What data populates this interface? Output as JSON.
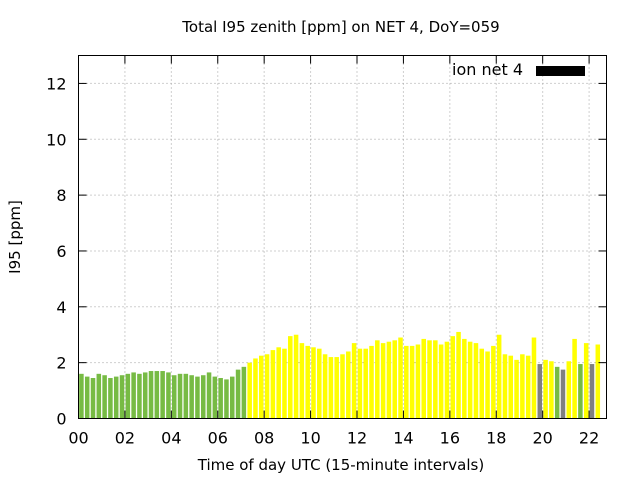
{
  "chart_data": {
    "type": "bar",
    "title": "Total I95 zenith [ppm] on NET 4, DoY=059",
    "xlabel": "Time of day UTC (15-minute intervals)",
    "ylabel": "I95 [ppm]",
    "xlim": [
      0,
      22.75
    ],
    "ylim": [
      0,
      13
    ],
    "x_ticks": [
      "00",
      "02",
      "04",
      "06",
      "08",
      "10",
      "12",
      "14",
      "16",
      "18",
      "20",
      "22"
    ],
    "y_ticks": [
      "0",
      "2",
      "4",
      "6",
      "8",
      "10",
      "12"
    ],
    "grid": true,
    "legend": {
      "placement": "top-right",
      "entries": [
        {
          "label": "ion net 4",
          "color": "#000000"
        }
      ]
    },
    "interval_hours": 0.25,
    "colors": {
      "green": "#77bb44",
      "yellow": "#ffff00",
      "gray": "#808080"
    },
    "values": [
      1.6,
      1.5,
      1.45,
      1.6,
      1.55,
      1.45,
      1.5,
      1.55,
      1.6,
      1.65,
      1.6,
      1.65,
      1.7,
      1.7,
      1.7,
      1.65,
      1.55,
      1.6,
      1.6,
      1.55,
      1.5,
      1.55,
      1.65,
      1.5,
      1.45,
      1.4,
      1.5,
      1.75,
      1.85,
      2.0,
      2.15,
      2.25,
      2.3,
      2.45,
      2.55,
      2.5,
      2.95,
      3.0,
      2.7,
      2.6,
      2.55,
      2.5,
      2.3,
      2.2,
      2.2,
      2.3,
      2.4,
      2.7,
      2.5,
      2.5,
      2.6,
      2.8,
      2.7,
      2.75,
      2.8,
      2.9,
      2.6,
      2.6,
      2.65,
      2.85,
      2.8,
      2.8,
      2.65,
      2.75,
      2.95,
      3.1,
      2.85,
      2.75,
      2.7,
      2.5,
      2.4,
      2.6,
      3.0,
      2.3,
      2.25,
      2.1,
      2.3,
      2.25,
      2.9,
      1.95,
      2.1,
      2.05,
      1.85,
      1.75,
      2.05,
      2.85,
      1.95,
      2.7,
      1.95,
      2.65
    ],
    "bar_colors": [
      "green",
      "green",
      "green",
      "green",
      "green",
      "green",
      "green",
      "green",
      "green",
      "green",
      "green",
      "green",
      "green",
      "green",
      "green",
      "green",
      "green",
      "green",
      "green",
      "green",
      "green",
      "green",
      "green",
      "green",
      "green",
      "green",
      "green",
      "green",
      "green",
      "yellow",
      "yellow",
      "yellow",
      "yellow",
      "yellow",
      "yellow",
      "yellow",
      "yellow",
      "yellow",
      "yellow",
      "yellow",
      "yellow",
      "yellow",
      "yellow",
      "yellow",
      "yellow",
      "yellow",
      "yellow",
      "yellow",
      "yellow",
      "yellow",
      "yellow",
      "yellow",
      "yellow",
      "yellow",
      "yellow",
      "yellow",
      "yellow",
      "yellow",
      "yellow",
      "yellow",
      "yellow",
      "yellow",
      "yellow",
      "yellow",
      "yellow",
      "yellow",
      "yellow",
      "yellow",
      "yellow",
      "yellow",
      "yellow",
      "yellow",
      "yellow",
      "yellow",
      "yellow",
      "yellow",
      "yellow",
      "yellow",
      "yellow",
      "gray",
      "yellow",
      "yellow",
      "green",
      "gray",
      "yellow",
      "yellow",
      "green",
      "yellow",
      "gray",
      "yellow"
    ]
  }
}
